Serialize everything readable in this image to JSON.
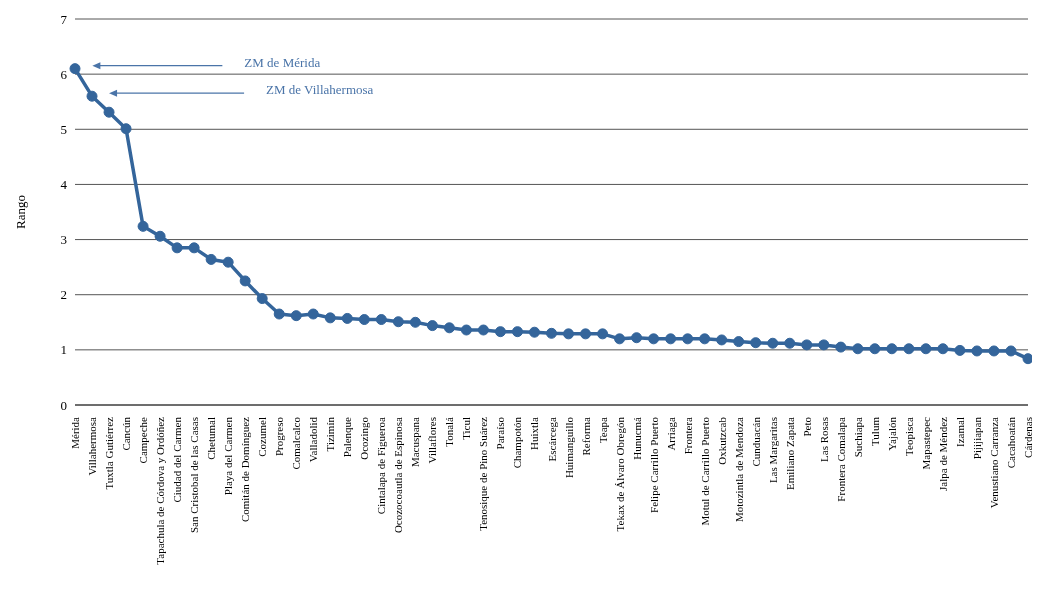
{
  "chart_data": {
    "type": "line",
    "ylabel": "Rango",
    "categories": [
      "Mérida",
      "Villahermosa",
      "Tuxtla Gutiérrez",
      "Cancún",
      "Campeche",
      "Tapachula de Córdova y Ordóñez",
      "Ciudad del Carmen",
      "San Cristobal de las Casas",
      "Chetumal",
      "Playa del Carmen",
      "Comitán de Domínguez",
      "Cozumel",
      "Progreso",
      "Comalcalco",
      "Valladolid",
      "Tizimín",
      "Palenque",
      "Ocozingo",
      "Cintalapa de Figueroa",
      "Ocozocoautla de Espinosa",
      "Macuspana",
      "Villaflores",
      "Tonalá",
      "Ticul",
      "Tenosique de Pino Suárez",
      "Paraíso",
      "Champotón",
      "Huixtla",
      "Escárcega",
      "Huimanguillo",
      "Reforma",
      "Teapa",
      "Tekax de Álvaro Obregón",
      "Hunucmá",
      "Felipe Carrillo Puerto",
      "Arriaga",
      "Frontera",
      "Motul de Carrillo Puerto",
      "Oxkutzcab",
      "Motozintla de Mendoza",
      "Cunduacán",
      "Las Margaritas",
      "Emiliano Zapata",
      "Peto",
      "Las Rosas",
      "Frontera Comalapa",
      "Suchiapa",
      "Tulum",
      "Yajalón",
      "Teopisca",
      "Mapastepec",
      "Jalpa de Méndez",
      "Izamal",
      "Pijijiapan",
      "Venustiano Carranza",
      "Cacahoatán",
      "Cárdenas"
    ],
    "series": [
      {
        "color": "#34659b",
        "values": [
          6.1,
          5.6,
          5.31,
          5.01,
          3.24,
          3.06,
          2.85,
          2.85,
          2.64,
          2.59,
          2.25,
          1.93,
          1.65,
          1.62,
          1.65,
          1.58,
          1.57,
          1.55,
          1.55,
          1.51,
          1.5,
          1.44,
          1.4,
          1.36,
          1.36,
          1.33,
          1.33,
          1.32,
          1.3,
          1.29,
          1.29,
          1.29,
          1.2,
          1.22,
          1.2,
          1.2,
          1.2,
          1.2,
          1.18,
          1.15,
          1.13,
          1.12,
          1.12,
          1.09,
          1.09,
          1.05,
          1.02,
          1.02,
          1.02,
          1.02,
          1.02,
          1.02,
          0.99,
          0.98,
          0.98,
          0.98,
          0.84
        ]
      }
    ],
    "ylim": [
      0,
      7
    ],
    "yticks": [
      0,
      1,
      2,
      3,
      4,
      5,
      6,
      7
    ],
    "grid": "y",
    "marker": "circle",
    "line_style": "solid",
    "annotations": [
      "ZM de Mérida",
      "ZM de Villahermosa"
    ]
  }
}
